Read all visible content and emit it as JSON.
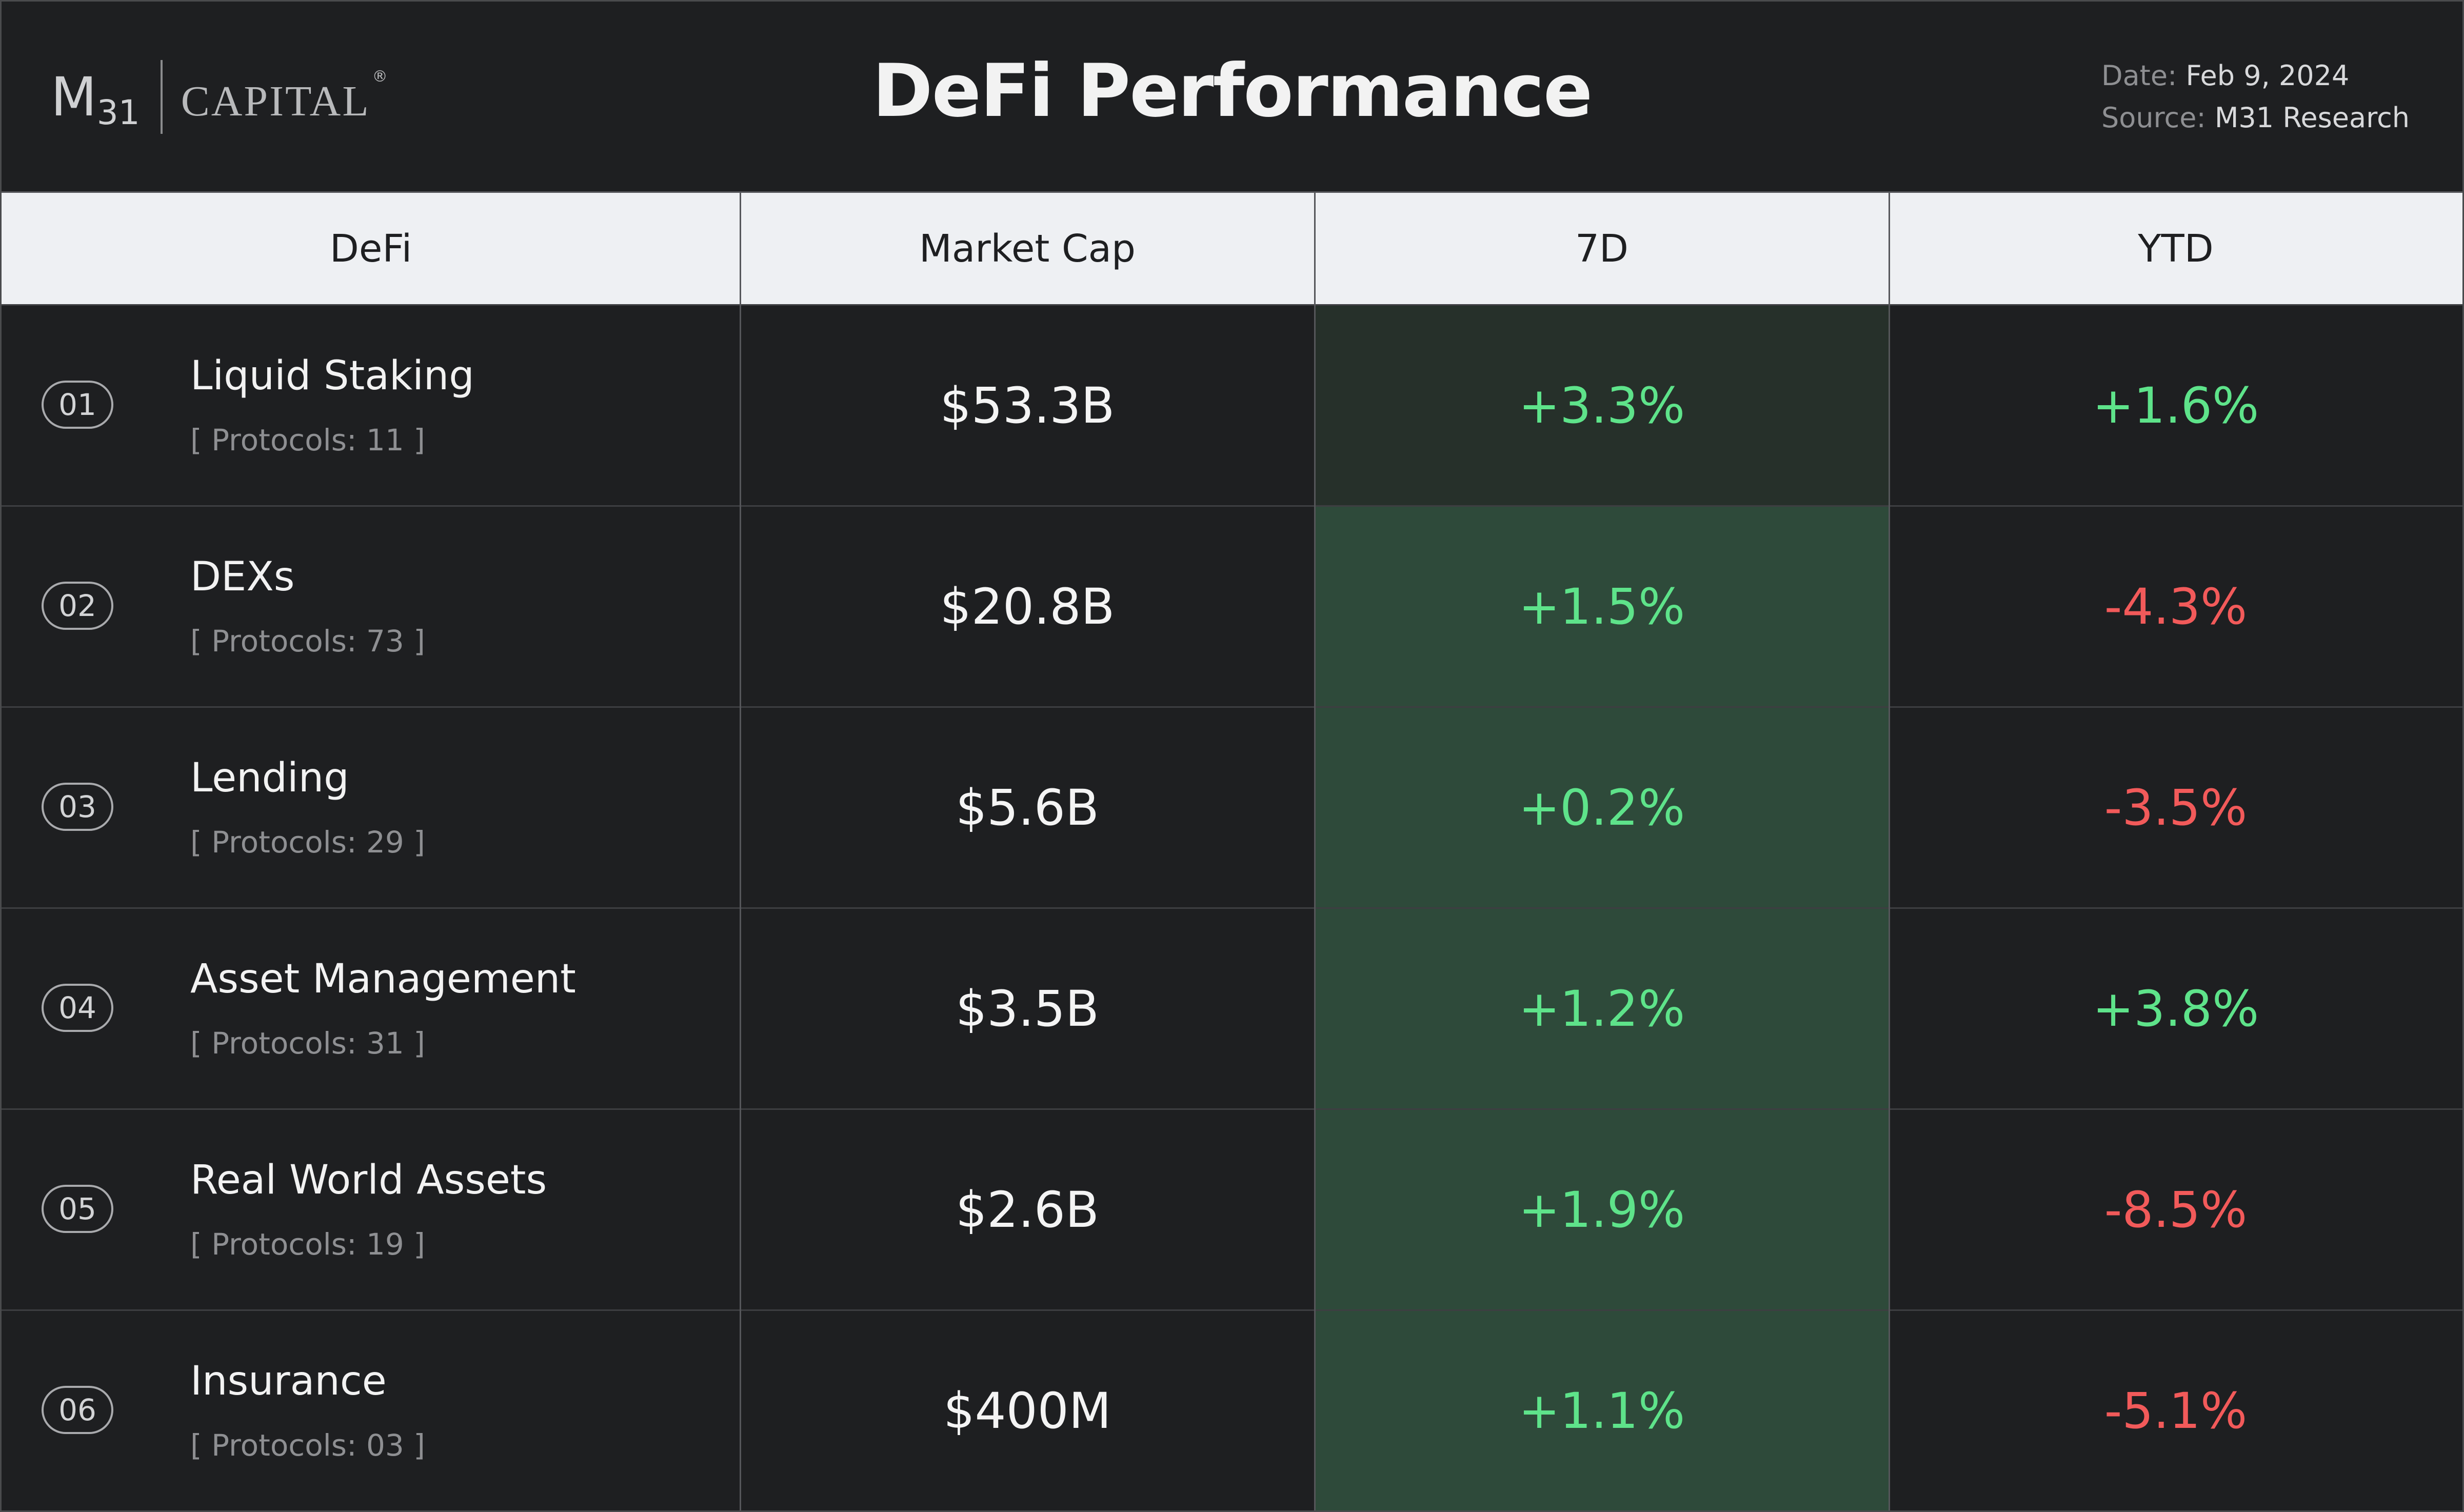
{
  "header": {
    "logo": {
      "m": "M",
      "sub": "31",
      "capital": "CAPITAL",
      "reg": "®"
    },
    "title": "DeFi Performance",
    "date_label": "Date:",
    "date_value": "Feb 9, 2024",
    "source_label": "Source:",
    "source_value": "M31 Research"
  },
  "colors": {
    "background": "#1e1f21",
    "header_row": "#eef0f3",
    "positive": "#5ee38a",
    "negative": "#f25a5a",
    "heat_column_base": "#26302a",
    "heat_column_strong": "#2e4a3a"
  },
  "chart_data": {
    "type": "table",
    "title": "DeFi Performance",
    "columns": [
      "DeFi",
      "Market Cap",
      "7D",
      "YTD"
    ],
    "rows": [
      {
        "index": "01",
        "name": "Liquid Staking",
        "protocols": "[ Protocols: 11 ]",
        "market_cap": "$53.3B",
        "d7": "+3.3%",
        "ytd": "+1.6%",
        "d7_value": 3.3,
        "ytd_value": 1.6
      },
      {
        "index": "02",
        "name": "DEXs",
        "protocols": "[ Protocols: 73 ]",
        "market_cap": "$20.8B",
        "d7": "+1.5%",
        "ytd": "-4.3%",
        "d7_value": 1.5,
        "ytd_value": -4.3
      },
      {
        "index": "03",
        "name": "Lending",
        "protocols": "[ Protocols: 29 ]",
        "market_cap": "$5.6B",
        "d7": "+0.2%",
        "ytd": "-3.5%",
        "d7_value": 0.2,
        "ytd_value": -3.5
      },
      {
        "index": "04",
        "name": "Asset Management",
        "protocols": "[ Protocols: 31 ]",
        "market_cap": "$3.5B",
        "d7": "+1.2%",
        "ytd": "+3.8%",
        "d7_value": 1.2,
        "ytd_value": 3.8
      },
      {
        "index": "05",
        "name": "Real World Assets",
        "protocols": "[ Protocols: 19 ]",
        "market_cap": "$2.6B",
        "d7": "+1.9%",
        "ytd": "-8.5%",
        "d7_value": 1.9,
        "ytd_value": -8.5
      },
      {
        "index": "06",
        "name": "Insurance",
        "protocols": "[ Protocols: 03 ]",
        "market_cap": "$400M",
        "d7": "+1.1%",
        "ytd": "-5.1%",
        "d7_value": 1.1,
        "ytd_value": -5.1
      }
    ]
  }
}
